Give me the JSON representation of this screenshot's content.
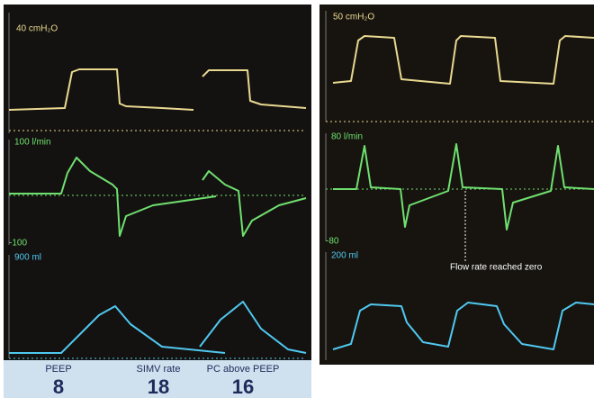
{
  "left_screen": {
    "pressure_label": "40 cmH₂O",
    "flow_label": "100 l/min",
    "flow_min_label": "-100",
    "volume_label": "900 ml",
    "settings": [
      {
        "name": "PEEP",
        "value": "8"
      },
      {
        "name": "SIMV rate",
        "value": "18"
      },
      {
        "name": "PC above PEEP",
        "value": "16"
      }
    ]
  },
  "right_screen": {
    "pressure_label": "50 cmH₂O",
    "flow_label": "80 l/min",
    "flow_min_label": "-80",
    "volume_label": "200 ml",
    "annotation": "Flow rate reached zero"
  }
}
